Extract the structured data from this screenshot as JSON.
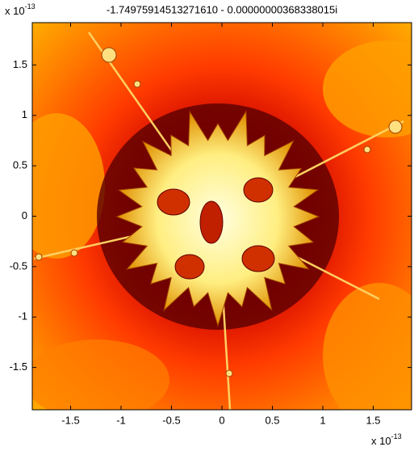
{
  "chart_data": {
    "type": "image",
    "title": "-1.74975914513271610 - 0.00000000368338015i",
    "x_multiplier": {
      "base": "x 10",
      "exponent": "-13"
    },
    "y_multiplier": {
      "base": "x 10",
      "exponent": "-13"
    },
    "xlim": [
      -1.88,
      1.88
    ],
    "ylim": [
      -1.92,
      1.92
    ],
    "xticks": [
      -1.5,
      -1,
      -0.5,
      0,
      0.5,
      1,
      1.5
    ],
    "yticks": [
      -1.5,
      -1,
      -0.5,
      0,
      0.5,
      1,
      1.5
    ]
  }
}
